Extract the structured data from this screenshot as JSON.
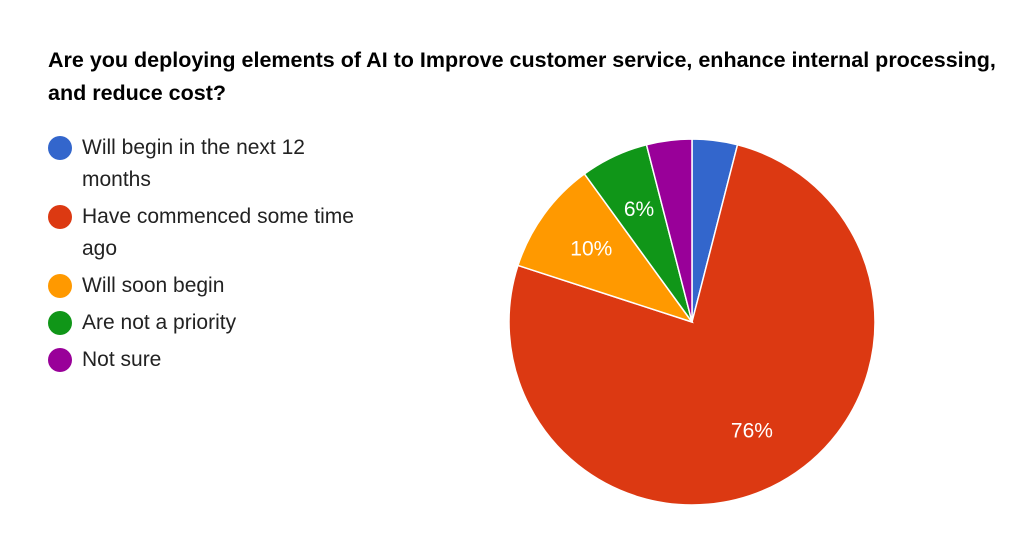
{
  "chart_data": {
    "type": "pie",
    "title": "Are you deploying elements of AI to Improve customer service, enhance internal processing, and reduce cost?",
    "categories": [
      "Will begin in the next 12 months",
      "Have commenced some time ago",
      "Will soon begin",
      "Are not a priority",
      "Not sure"
    ],
    "values": [
      4,
      76,
      10,
      6,
      4
    ],
    "colors": [
      "#3366cc",
      "#dc3912",
      "#ff9900",
      "#109618",
      "#990099"
    ],
    "data_labels": [
      "",
      "76%",
      "10%",
      "6%",
      ""
    ],
    "legend_position": "left"
  }
}
